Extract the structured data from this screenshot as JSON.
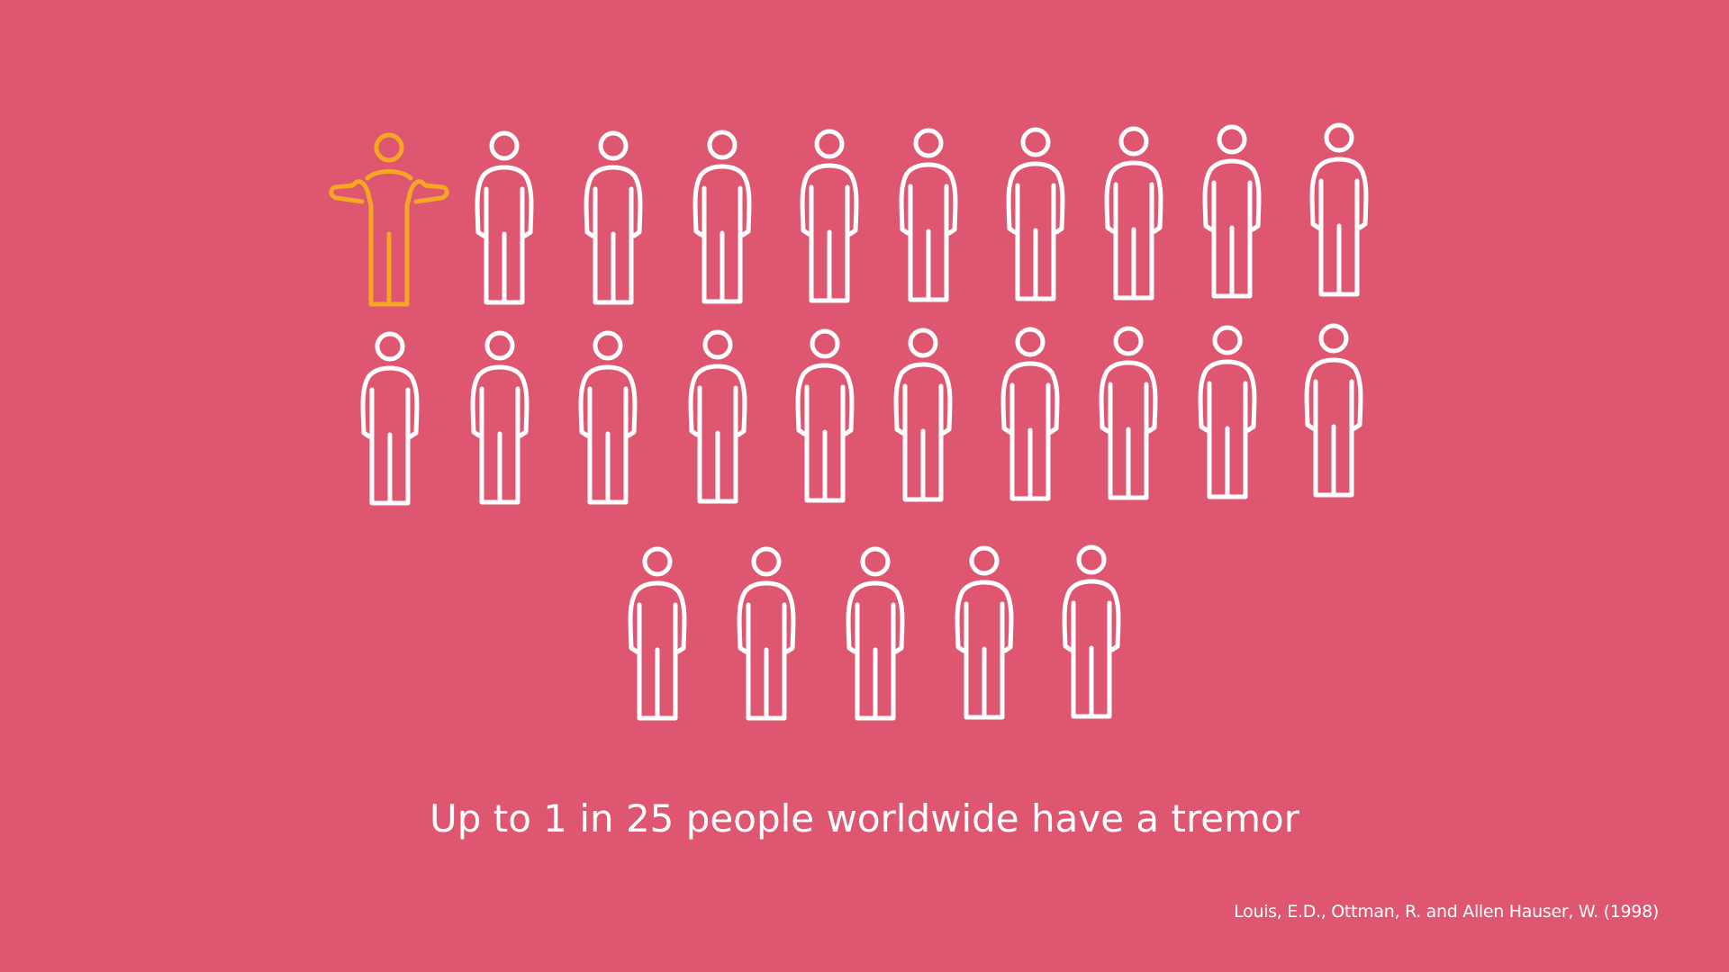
{
  "colors": {
    "background": "#DE5670",
    "person": "#FFFFFF",
    "highlight": "#F5A623",
    "text": "#FFFFFF"
  },
  "icon": "person-icon",
  "highlight_icon": "shrugging-person-icon",
  "pictogram": {
    "total_people": 25,
    "highlighted_people": 1
  },
  "headline": "Up to 1 in 25 people worldwide have a tremor",
  "citation": "Louis, E.D., Ottman, R. and Allen Hauser, W. (1998)"
}
